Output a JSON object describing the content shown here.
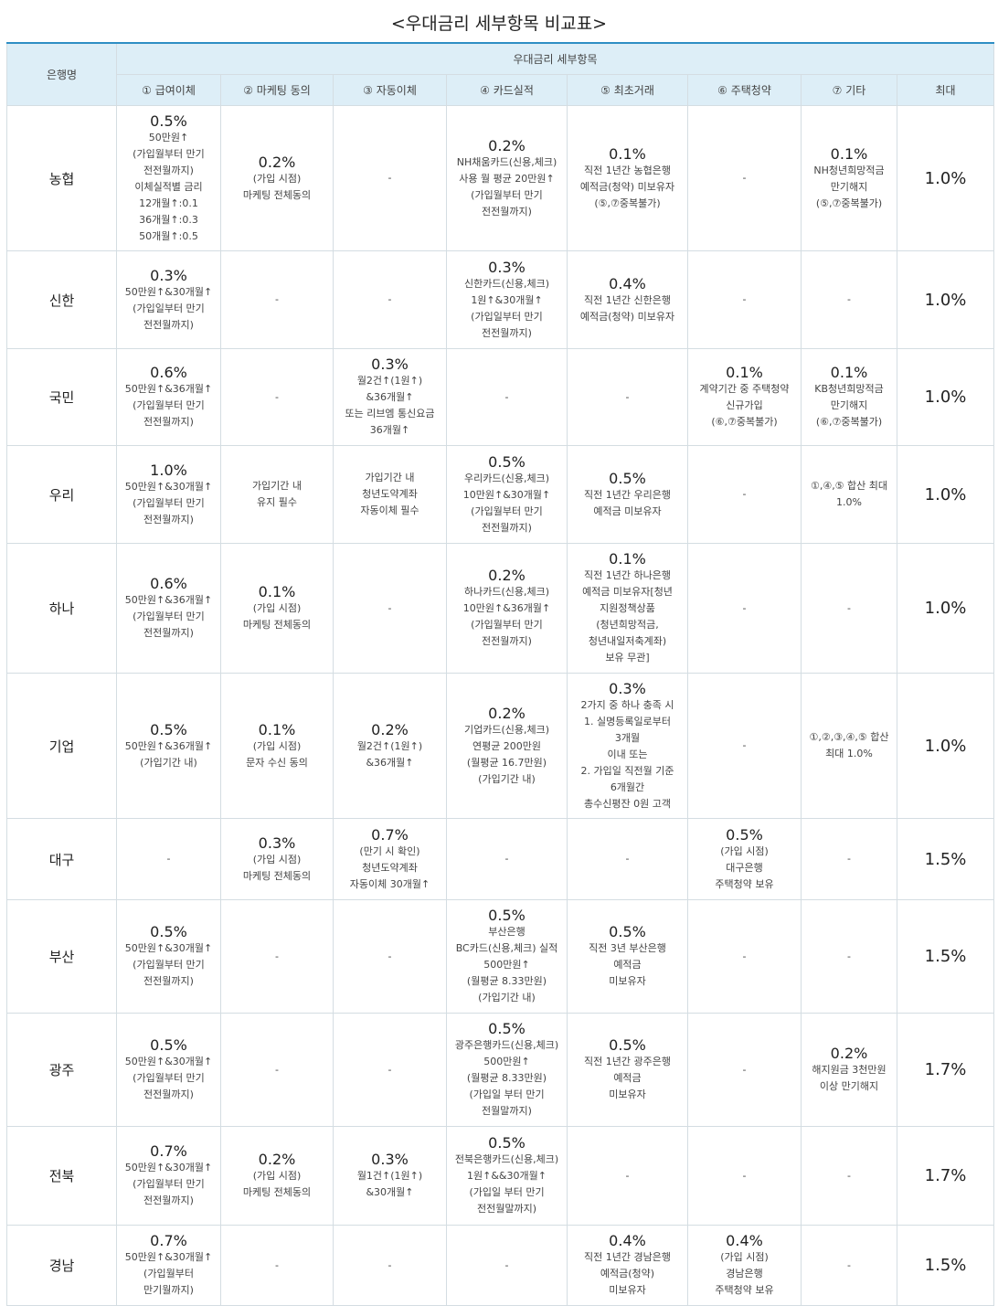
{
  "title": "<우대금리 세부항목 비교표>",
  "header": {
    "bank": "은행명",
    "group": "우대금리 세부항목",
    "columns": [
      "① 급여이체",
      "② 마케팅 동의",
      "③ 자동이체",
      "④ 카드실적",
      "⑤ 최초거래",
      "⑥ 주택청약",
      "⑦ 기타",
      "최대"
    ]
  },
  "rows": [
    {
      "bank": "농협",
      "cells": [
        {
          "rate": "0.5%",
          "desc": "50만원↑\n(가입월부터 만기\n전전월까지)\n이체실적별 금리\n12개월↑:0.1\n36개월↑:0.3\n50개월↑:0.5"
        },
        {
          "rate": "0.2%",
          "desc": "(가입 시점)\n마케팅 전체동의"
        },
        {
          "rate": "",
          "desc": "-"
        },
        {
          "rate": "0.2%",
          "desc": "NH채움카드(신용,체크)\n사용 월 평균 20만원↑\n(가입월부터 만기\n전전월까지)"
        },
        {
          "rate": "0.1%",
          "desc": "직전 1년간 농협은행\n예적금(청약) 미보유자\n(⑤,⑦중복불가)"
        },
        {
          "rate": "",
          "desc": "-"
        },
        {
          "rate": "0.1%",
          "desc": "NH청년희망적금\n만기해지\n(⑤,⑦중복불가)"
        }
      ],
      "max": "1.0%"
    },
    {
      "bank": "신한",
      "cells": [
        {
          "rate": "0.3%",
          "desc": "50만원↑&30개월↑\n(가입일부터 만기\n전전월까지)"
        },
        {
          "rate": "",
          "desc": "-"
        },
        {
          "rate": "",
          "desc": "-"
        },
        {
          "rate": "0.3%",
          "desc": "신한카드(신용,체크)\n1원↑&30개월↑\n(가입일부터 만기\n전전월까지)"
        },
        {
          "rate": "0.4%",
          "desc": "직전 1년간 신한은행\n예적금(청약) 미보유자"
        },
        {
          "rate": "",
          "desc": "-"
        },
        {
          "rate": "",
          "desc": "-"
        }
      ],
      "max": "1.0%"
    },
    {
      "bank": "국민",
      "cells": [
        {
          "rate": "0.6%",
          "desc": "50만원↑&36개월↑\n(가입월부터 만기\n전전월까지)"
        },
        {
          "rate": "",
          "desc": "-"
        },
        {
          "rate": "0.3%",
          "desc": "월2건↑(1원↑)\n&36개월↑\n또는 리브엠 통신요금\n36개월↑"
        },
        {
          "rate": "",
          "desc": "-"
        },
        {
          "rate": "",
          "desc": "-"
        },
        {
          "rate": "0.1%",
          "desc": "계약기간 중 주택청약\n신규가입\n(⑥,⑦중복불가)"
        },
        {
          "rate": "0.1%",
          "desc": "KB청년희망적금\n만기해지\n(⑥,⑦중복불가)"
        }
      ],
      "max": "1.0%"
    },
    {
      "bank": "우리",
      "cells": [
        {
          "rate": "1.0%",
          "desc": "50만원↑&30개월↑\n(가입월부터 만기\n전전월까지)"
        },
        {
          "rate": "",
          "desc": "가입기간 내\n유지 필수"
        },
        {
          "rate": "",
          "desc": "가입기간 내\n청년도약계좌\n자동이체 필수"
        },
        {
          "rate": "0.5%",
          "desc": "우리카드(신용,체크)\n10만원↑&30개월↑\n(가입월부터 만기\n전전월까지)"
        },
        {
          "rate": "0.5%",
          "desc": "직전 1년간 우리은행\n예적금 미보유자"
        },
        {
          "rate": "",
          "desc": "-"
        },
        {
          "rate": "",
          "desc": "①,④,⑤ 합산 최대\n1.0%"
        }
      ],
      "max": "1.0%"
    },
    {
      "bank": "하나",
      "cells": [
        {
          "rate": "0.6%",
          "desc": "50만원↑&36개월↑\n(가입월부터 만기\n전전월까지)"
        },
        {
          "rate": "0.1%",
          "desc": "(가입 시점)\n마케팅 전체동의"
        },
        {
          "rate": "",
          "desc": "-"
        },
        {
          "rate": "0.2%",
          "desc": "하나카드(신용,체크)\n10만원↑&36개월↑\n(가입월부터 만기\n전전월까지)"
        },
        {
          "rate": "0.1%",
          "desc": "직전 1년간 하나은행\n예적금 미보유자[청년\n지원정책상품\n(청년희망적금,\n청년내일저축계좌)\n보유 무관]"
        },
        {
          "rate": "",
          "desc": "-"
        },
        {
          "rate": "",
          "desc": "-"
        }
      ],
      "max": "1.0%"
    },
    {
      "bank": "기업",
      "cells": [
        {
          "rate": "0.5%",
          "desc": "50만원↑&36개월↑\n(가입기간 내)"
        },
        {
          "rate": "0.1%",
          "desc": "(가입 시점)\n문자 수신 동의"
        },
        {
          "rate": "0.2%",
          "desc": "월2건↑(1원↑)\n&36개월↑"
        },
        {
          "rate": "0.2%",
          "desc": "기업카드(신용,체크)\n연평균 200만원\n(월평균 16.7만원)\n(가입기간 내)"
        },
        {
          "rate": "0.3%",
          "desc": "2가지 중 하나 충족 시\n1. 실명등록일로부터\n3개월\n이내 또는\n2. 가입일 직전월 기준\n6개월간\n총수신평잔 0원 고객"
        },
        {
          "rate": "",
          "desc": "-"
        },
        {
          "rate": "",
          "desc": "①,②,③,④,⑤ 합산\n최대 1.0%"
        }
      ],
      "max": "1.0%"
    },
    {
      "bank": "대구",
      "cells": [
        {
          "rate": "",
          "desc": "-"
        },
        {
          "rate": "0.3%",
          "desc": "(가입 시점)\n마케팅 전체동의"
        },
        {
          "rate": "0.7%",
          "desc": "(만기 시 확인)\n청년도약계좌\n자동이체 30개월↑"
        },
        {
          "rate": "",
          "desc": "-"
        },
        {
          "rate": "",
          "desc": "-"
        },
        {
          "rate": "0.5%",
          "desc": "(가입 시점)\n대구은행\n주택청약 보유"
        },
        {
          "rate": "",
          "desc": "-"
        }
      ],
      "max": "1.5%"
    },
    {
      "bank": "부산",
      "cells": [
        {
          "rate": "0.5%",
          "desc": "50만원↑&30개월↑\n(가입월부터 만기\n전전월까지)"
        },
        {
          "rate": "",
          "desc": "-"
        },
        {
          "rate": "",
          "desc": "-"
        },
        {
          "rate": "0.5%",
          "desc": "부산은행\nBC카드(신용,체크) 실적\n500만원↑\n(월평균 8.33만원)\n(가입기간 내)"
        },
        {
          "rate": "0.5%",
          "desc": "직전 3년 부산은행\n예적금\n미보유자"
        },
        {
          "rate": "",
          "desc": "-"
        },
        {
          "rate": "",
          "desc": "-"
        }
      ],
      "max": "1.5%"
    },
    {
      "bank": "광주",
      "cells": [
        {
          "rate": "0.5%",
          "desc": "50만원↑&30개월↑\n(가입월부터 만기\n전전월까지)"
        },
        {
          "rate": "",
          "desc": "-"
        },
        {
          "rate": "",
          "desc": "-"
        },
        {
          "rate": "0.5%",
          "desc": "광주은행카드(신용,체크)\n500만원↑\n(월평균 8.33만원)\n(가입일 부터 만기\n전월말까지)"
        },
        {
          "rate": "0.5%",
          "desc": "직전 1년간 광주은행\n예적금\n미보유자"
        },
        {
          "rate": "",
          "desc": "-"
        },
        {
          "rate": "0.2%",
          "desc": "해지원금 3천만원\n이상 만기해지"
        }
      ],
      "max": "1.7%"
    },
    {
      "bank": "전북",
      "cells": [
        {
          "rate": "0.7%",
          "desc": "50만원↑&30개월↑\n(가입월부터 만기\n전전월까지)"
        },
        {
          "rate": "0.2%",
          "desc": "(가입 시점)\n마케팅 전체동의"
        },
        {
          "rate": "0.3%",
          "desc": "월1건↑(1원↑)\n&30개월↑"
        },
        {
          "rate": "0.5%",
          "desc": "전북은행카드(신용,체크)\n1원↑&&30개월↑\n(가입일 부터 만기\n전전월말까지)"
        },
        {
          "rate": "",
          "desc": "-"
        },
        {
          "rate": "",
          "desc": "-"
        },
        {
          "rate": "",
          "desc": "-"
        }
      ],
      "max": "1.7%"
    },
    {
      "bank": "경남",
      "cells": [
        {
          "rate": "0.7%",
          "desc": "50만원↑&30개월↑\n(가입월부터\n만기월까지)"
        },
        {
          "rate": "",
          "desc": "-"
        },
        {
          "rate": "",
          "desc": "-"
        },
        {
          "rate": "",
          "desc": "-"
        },
        {
          "rate": "0.4%",
          "desc": "직전 1년간 경남은행\n예적금(청약)\n미보유자"
        },
        {
          "rate": "0.4%",
          "desc": "(가입 시점)\n경남은행\n주택청약 보유"
        },
        {
          "rate": "",
          "desc": "-"
        }
      ],
      "max": "1.5%"
    }
  ]
}
